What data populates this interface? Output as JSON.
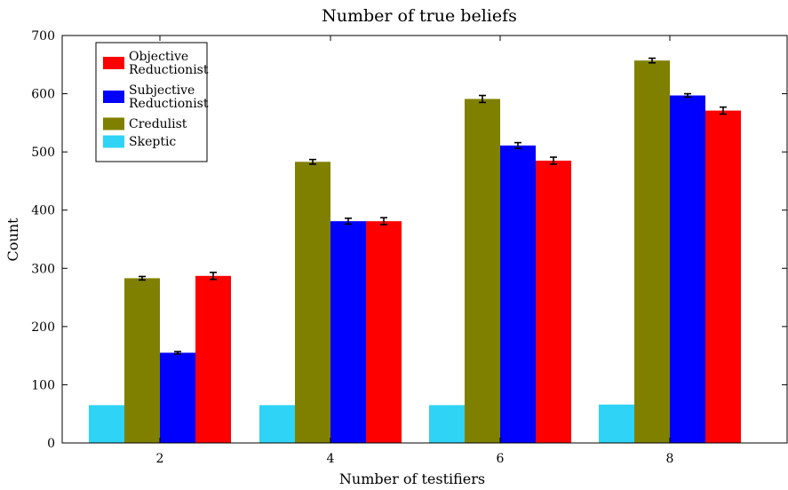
{
  "chart_data": {
    "type": "bar",
    "title": "Number of true beliefs",
    "xlabel": "Number of testifiers",
    "ylabel": "Count",
    "categories": [
      "2",
      "4",
      "6",
      "8"
    ],
    "ylim": [
      0,
      700
    ],
    "yticks": [
      0,
      100,
      200,
      300,
      400,
      500,
      600,
      700
    ],
    "grid": false,
    "legend_position": "top-left",
    "series": [
      {
        "name": "Skeptic",
        "color": "#2fd3f5",
        "values": [
          65,
          65,
          65,
          66
        ],
        "errors": [
          null,
          null,
          null,
          null
        ]
      },
      {
        "name": "Credulist",
        "color": "#808000",
        "values": [
          283,
          483,
          591,
          657
        ],
        "errors": [
          3,
          4,
          6,
          4
        ]
      },
      {
        "name": "Subjective Reductionist",
        "color": "#0000ff",
        "values": [
          155,
          381,
          511,
          597
        ],
        "errors": [
          2,
          5,
          5,
          3
        ]
      },
      {
        "name": "Objective Reductionist",
        "color": "#ff0000",
        "values": [
          287,
          381,
          485,
          571
        ],
        "errors": [
          6,
          6,
          6,
          6
        ]
      }
    ],
    "legend": [
      {
        "lines": [
          "Objective",
          "Reductionist"
        ],
        "color": "#ff0000"
      },
      {
        "lines": [
          "Subjective",
          "Reductionist"
        ],
        "color": "#0000ff"
      },
      {
        "lines": [
          "Credulist"
        ],
        "color": "#808000"
      },
      {
        "lines": [
          "Skeptic"
        ],
        "color": "#2fd3f5"
      }
    ]
  }
}
